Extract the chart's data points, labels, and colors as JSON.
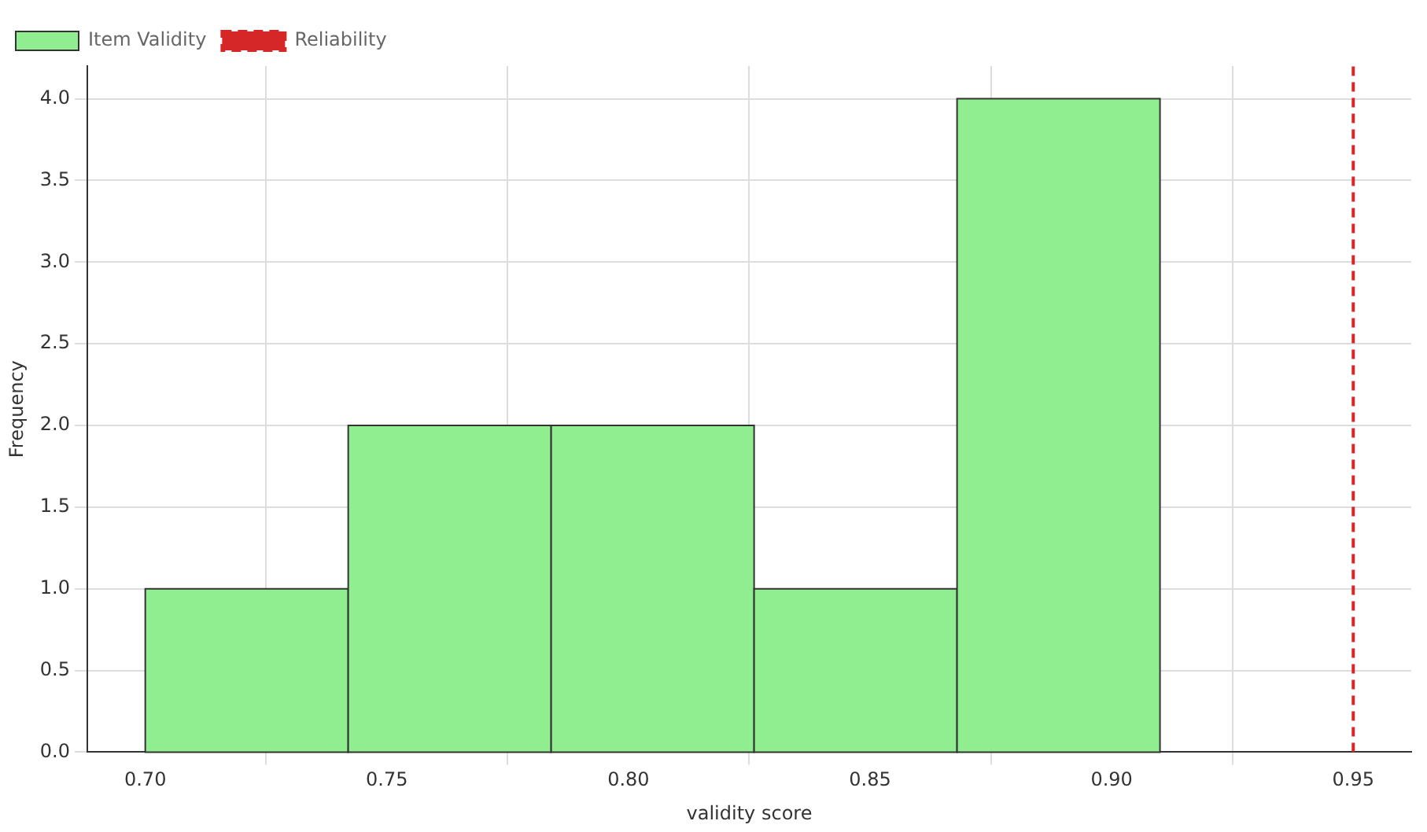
{
  "chart_data": {
    "type": "histogram",
    "xlabel": "validity score",
    "ylabel": "Frequency",
    "bins": [
      0.7,
      0.742,
      0.784,
      0.826,
      0.868,
      0.91
    ],
    "series": [
      {
        "name": "Item Validity",
        "color": "#90ee90",
        "values": [
          1,
          2,
          2,
          1,
          4
        ]
      }
    ],
    "ref_lines": [
      {
        "axis": "x",
        "value": 0.95,
        "label": "Reliability",
        "color": "#d62728",
        "line_style": "dashed"
      }
    ],
    "xlim": [
      0.688,
      0.962
    ],
    "xticks": [
      {
        "value": 0.7,
        "label": "0.70"
      },
      {
        "value": 0.75,
        "label": "0.75"
      },
      {
        "value": 0.8,
        "label": "0.80"
      },
      {
        "value": 0.85,
        "label": "0.85"
      },
      {
        "value": 0.9,
        "label": "0.90"
      },
      {
        "value": 0.95,
        "label": "0.95"
      }
    ],
    "ylim": [
      0,
      4.2
    ],
    "yticks": [
      {
        "value": 0,
        "label": "0.0"
      },
      {
        "value": 0.5,
        "label": "0.5"
      },
      {
        "value": 1,
        "label": "1.0"
      },
      {
        "value": 1.5,
        "label": "1.5"
      },
      {
        "value": 2,
        "label": "2.0"
      },
      {
        "value": 2.5,
        "label": "2.5"
      },
      {
        "value": 3,
        "label": "3.0"
      },
      {
        "value": 3.5,
        "label": "3.5"
      },
      {
        "value": 4,
        "label": "4.0"
      }
    ],
    "grid": true,
    "legend": "top left"
  }
}
